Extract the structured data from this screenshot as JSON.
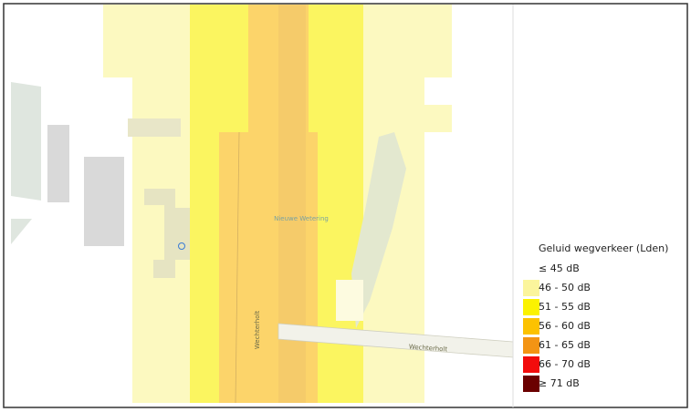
{
  "map": {
    "labels": {
      "water": "Nieuwe Wetering",
      "road_vertical": "Wechterholt",
      "road_horizontal": "Wechterholt"
    },
    "legend": {
      "title": "Geluid wegverkeer (Lden)",
      "items": [
        {
          "label": "≤ 45 dB",
          "color": null
        },
        {
          "label": "46 - 50 dB",
          "color": "#fbf59c"
        },
        {
          "label": "51 - 55 dB",
          "color": "#fbf200"
        },
        {
          "label": "56 - 60 dB",
          "color": "#fcc200"
        },
        {
          "label": "61 - 65 dB",
          "color": "#f39414"
        },
        {
          "label": "66 - 70 dB",
          "color": "#f20c0c"
        },
        {
          "label": "≥ 71 dB",
          "color": "#6b0000"
        }
      ]
    }
  }
}
